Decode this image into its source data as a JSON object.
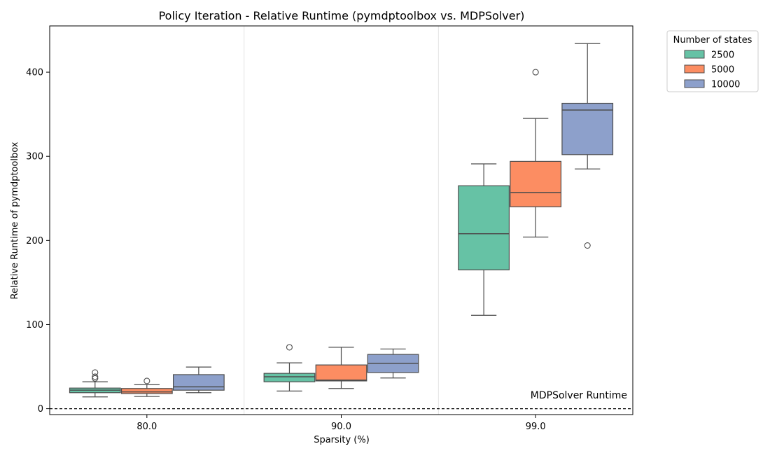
{
  "chart_data": {
    "type": "box",
    "title": "Policy Iteration - Relative Runtime (pymdptoolbox vs. MDPSolver)",
    "xlabel": "Sparsity (%)",
    "ylabel": "Relative Runtime of pymdptoolbox",
    "categories": [
      "80.0",
      "90.0",
      "99.0"
    ],
    "ylim": [
      -7,
      455
    ],
    "yticks": [
      0,
      100,
      200,
      300,
      400
    ],
    "grid": "vertical lines between categories",
    "legend": {
      "title": "Number of states",
      "placement": "outside right, top"
    },
    "reference_line": {
      "y": 0,
      "style": "dashed",
      "label": "MDPSolver Runtime"
    },
    "series": [
      {
        "name": "2500",
        "color": "#66c2a5",
        "boxes": [
          {
            "whislo": 14,
            "q1": 19,
            "med": 22,
            "q3": 24.5,
            "whishi": 32,
            "fliers": [
              36,
              38,
              43
            ]
          },
          {
            "whislo": 21,
            "q1": 32,
            "med": 38,
            "q3": 42,
            "whishi": 54.5,
            "fliers": [
              73
            ]
          },
          {
            "whislo": 111,
            "q1": 165,
            "med": 208,
            "q3": 265,
            "whishi": 291,
            "fliers": []
          }
        ]
      },
      {
        "name": "5000",
        "color": "#fc8d62",
        "boxes": [
          {
            "whislo": 14.5,
            "q1": 18,
            "med": 20,
            "q3": 24,
            "whishi": 28.5,
            "fliers": [
              33
            ]
          },
          {
            "whislo": 24,
            "q1": 33,
            "med": 34,
            "q3": 52,
            "whishi": 73,
            "fliers": []
          },
          {
            "whislo": 204,
            "q1": 240,
            "med": 257,
            "q3": 294,
            "whishi": 345,
            "fliers": [
              400
            ]
          }
        ]
      },
      {
        "name": "10000",
        "color": "#8da0cb",
        "boxes": [
          {
            "whislo": 19,
            "q1": 22,
            "med": 26,
            "q3": 40.5,
            "whishi": 49.5,
            "fliers": []
          },
          {
            "whislo": 36.5,
            "q1": 43,
            "med": 54,
            "q3": 64.5,
            "whishi": 71,
            "fliers": []
          },
          {
            "whislo": 285,
            "q1": 302,
            "med": 355,
            "q3": 363,
            "whishi": 434,
            "fliers": [
              194
            ]
          }
        ]
      }
    ]
  }
}
